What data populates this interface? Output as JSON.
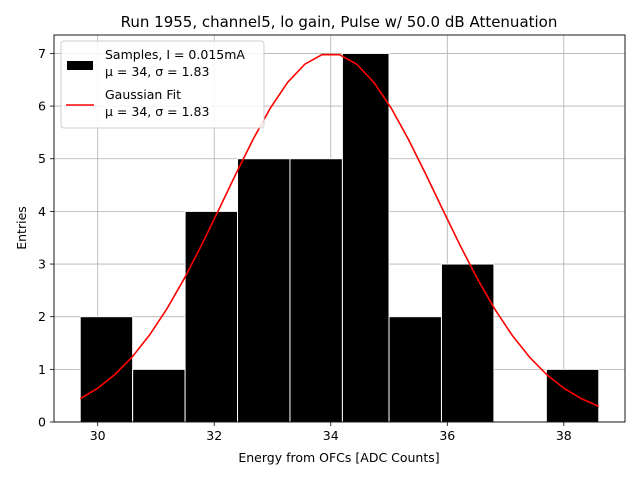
{
  "chart_data": {
    "type": "bar",
    "title": "Run 1955, channel5, lo gain, Pulse w/ 50.0 dB Attenuation",
    "xlabel": "Energy from OFCs [ADC Counts]",
    "ylabel": "Entries",
    "xlim": [
      29.25,
      39.05
    ],
    "ylim": [
      0,
      7.35
    ],
    "grid": true,
    "legend_position": "top-left",
    "x_ticks": [
      30,
      32,
      34,
      36,
      38
    ],
    "y_ticks": [
      0,
      1,
      2,
      3,
      4,
      5,
      6,
      7
    ],
    "histogram": {
      "name": "Samples, I = 0.015mA",
      "stats": "μ = 34, σ = 1.83",
      "color": "#000000",
      "edge_color": "#ffffff",
      "bins": [
        {
          "x0": 29.7,
          "x1": 30.6,
          "count": 2
        },
        {
          "x0": 30.6,
          "x1": 31.5,
          "count": 1
        },
        {
          "x0": 31.5,
          "x1": 32.4,
          "count": 4
        },
        {
          "x0": 32.4,
          "x1": 33.3,
          "count": 5
        },
        {
          "x0": 33.3,
          "x1": 34.2,
          "count": 5
        },
        {
          "x0": 34.2,
          "x1": 35.0,
          "count": 7
        },
        {
          "x0": 35.0,
          "x1": 35.9,
          "count": 2
        },
        {
          "x0": 35.9,
          "x1": 36.8,
          "count": 3
        },
        {
          "x0": 36.8,
          "x1": 37.7,
          "count": 0
        },
        {
          "x0": 37.7,
          "x1": 38.6,
          "count": 1
        }
      ]
    },
    "fit": {
      "name": "Gaussian Fit",
      "stats": "μ = 34, σ = 1.83",
      "color": "#ff0000",
      "mu": 34,
      "sigma": 1.83,
      "amplitude": 7.0,
      "x_start": 29.7,
      "x_end": 38.6
    }
  }
}
